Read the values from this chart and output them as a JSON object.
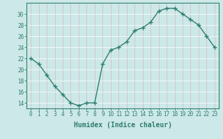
{
  "x": [
    0,
    1,
    2,
    3,
    4,
    5,
    6,
    7,
    8,
    9,
    10,
    11,
    12,
    13,
    14,
    15,
    16,
    17,
    18,
    19,
    20,
    21,
    22,
    23
  ],
  "y": [
    22,
    21,
    19,
    17,
    15.5,
    14,
    13.5,
    14,
    14,
    21,
    23.5,
    24,
    25,
    27,
    27.5,
    28.5,
    30.5,
    31,
    31,
    30,
    29,
    28,
    26,
    24
  ],
  "line_color": "#2e7d6e",
  "marker": "+",
  "marker_size": 4,
  "background_color": "#cde8e8",
  "grid_color": "#b0d4d4",
  "grid_color_major": "#aaaacc",
  "xlabel": "Humidex (Indice chaleur)",
  "xlim": [
    -0.5,
    23.5
  ],
  "ylim": [
    13,
    32
  ],
  "yticks": [
    14,
    16,
    18,
    20,
    22,
    24,
    26,
    28,
    30
  ],
  "xticks": [
    0,
    1,
    2,
    3,
    4,
    5,
    6,
    7,
    8,
    9,
    10,
    11,
    12,
    13,
    14,
    15,
    16,
    17,
    18,
    19,
    20,
    21,
    22,
    23
  ],
  "tick_fontsize": 5.5,
  "xlabel_fontsize": 7,
  "line_width": 1.0,
  "marker_edge_width": 1.0
}
